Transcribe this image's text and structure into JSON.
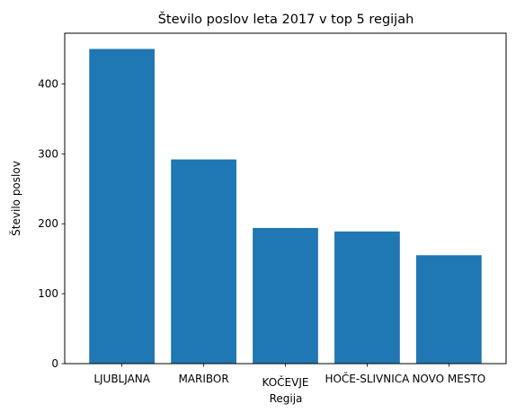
{
  "chart_data": {
    "type": "bar",
    "title": "Število poslov leta 2017 v top 5 regijah",
    "xlabel": "Regija",
    "ylabel": "Število poslov",
    "categories": [
      "LJUBLJANA",
      "MARIBOR",
      "KOČEVJE",
      "HOČE-SLIVNICA",
      "NOVO MESTO"
    ],
    "values": [
      450,
      292,
      194,
      189,
      155
    ],
    "yticks": [
      0,
      100,
      200,
      300,
      400
    ],
    "ylim": [
      0,
      472.5
    ],
    "bar_color": "#1f77b4",
    "grid": false,
    "legend": "none"
  }
}
